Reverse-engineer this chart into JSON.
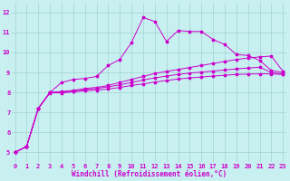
{
  "xlabel": "Windchill (Refroidissement éolien,°C)",
  "background_color": "#c8f0f0",
  "line_color": "#cc00cc",
  "grid_color": "#99cccc",
  "x_values": [
    0,
    1,
    2,
    3,
    4,
    5,
    6,
    7,
    8,
    9,
    10,
    11,
    12,
    13,
    14,
    15,
    16,
    17,
    18,
    19,
    20,
    21,
    22,
    23
  ],
  "series": [
    [
      5.0,
      5.3,
      7.2,
      8.0,
      8.5,
      8.65,
      8.7,
      8.8,
      9.35,
      9.65,
      10.5,
      11.75,
      11.55,
      10.55,
      11.1,
      11.05,
      11.05,
      10.65,
      10.4,
      9.9,
      9.85,
      9.6,
      9.1,
      9.0
    ],
    [
      5.0,
      5.3,
      7.2,
      8.0,
      8.05,
      8.1,
      8.2,
      8.25,
      8.35,
      8.5,
      8.65,
      8.8,
      8.95,
      9.05,
      9.15,
      9.25,
      9.35,
      9.45,
      9.55,
      9.65,
      9.72,
      9.78,
      9.82,
      9.05
    ],
    [
      5.0,
      5.3,
      7.2,
      8.0,
      8.0,
      8.07,
      8.13,
      8.2,
      8.28,
      8.38,
      8.5,
      8.62,
      8.73,
      8.82,
      8.9,
      8.97,
      9.02,
      9.07,
      9.12,
      9.18,
      9.22,
      9.26,
      9.0,
      8.92
    ],
    [
      5.0,
      5.3,
      7.2,
      7.98,
      7.98,
      8.03,
      8.08,
      8.12,
      8.17,
      8.25,
      8.35,
      8.43,
      8.52,
      8.6,
      8.67,
      8.73,
      8.77,
      8.82,
      8.86,
      8.9,
      8.92,
      8.93,
      8.93,
      8.9
    ]
  ],
  "xlim": [
    -0.3,
    23.3
  ],
  "ylim": [
    4.5,
    12.5
  ],
  "xticks": [
    0,
    1,
    2,
    3,
    4,
    5,
    6,
    7,
    8,
    9,
    10,
    11,
    12,
    13,
    14,
    15,
    16,
    17,
    18,
    19,
    20,
    21,
    22,
    23
  ],
  "yticks": [
    5,
    6,
    7,
    8,
    9,
    10,
    11,
    12
  ],
  "tick_fontsize": 5.0,
  "xlabel_fontsize": 5.5,
  "figsize": [
    3.2,
    2.0
  ],
  "dpi": 100
}
